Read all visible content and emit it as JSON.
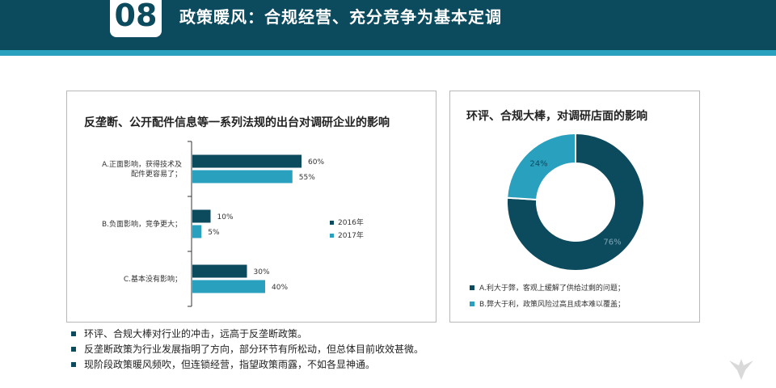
{
  "header": {
    "number": "08",
    "title": "政策暖风：合规经营、充分竞争为基本定调"
  },
  "colors": {
    "dark": "#0c4b5e",
    "light": "#2aa0bf"
  },
  "left_panel": {
    "title": "反垄断、公开配件信息等一系列法规的出台对调研企业的影响"
  },
  "right_panel": {
    "title": "环评、合规大棒，对调研店面的影响"
  },
  "chart_data": [
    {
      "type": "bar",
      "orientation": "horizontal",
      "categories": [
        [
          "A.正面影响，获得技术及",
          "配件更容易了；"
        ],
        [
          "B.负面影响，竞争更大；"
        ],
        [
          "C.基本没有影响；"
        ]
      ],
      "series": [
        {
          "name": "2016年",
          "values": [
            60,
            10,
            30
          ],
          "labels": [
            "60%",
            "10%",
            "30%"
          ],
          "color": "#0c4b5e"
        },
        {
          "name": "2017年",
          "values": [
            55,
            5,
            40
          ],
          "labels": [
            "55%",
            "5%",
            "40%"
          ],
          "color": "#2aa0bf"
        }
      ],
      "xlim": [
        0,
        100
      ],
      "grid": false,
      "legend": "right"
    },
    {
      "type": "pie",
      "style": "donut",
      "slices": [
        {
          "name": "A.利大于弊，客观上缓解了供给过剩的问题；",
          "value": 76,
          "label": "76%",
          "color": "#0c4b5e"
        },
        {
          "name": "B.弊大于利，政策风险过高且成本难以覆盖；",
          "value": 24,
          "label": "24%",
          "color": "#2aa0bf"
        }
      ],
      "legend": "bottom"
    }
  ],
  "bullets": [
    "环评、合规大棒对行业的冲击，远高于反垄断政策。",
    "反垄断政策为行业发展指明了方向，部分环节有所松动，但总体目前收效甚微。",
    "现阶段政策暖风频吹，但连锁经营，指望政策雨露，不如各显神通。"
  ],
  "logo": {
    "icon": "bird-logo-icon"
  }
}
